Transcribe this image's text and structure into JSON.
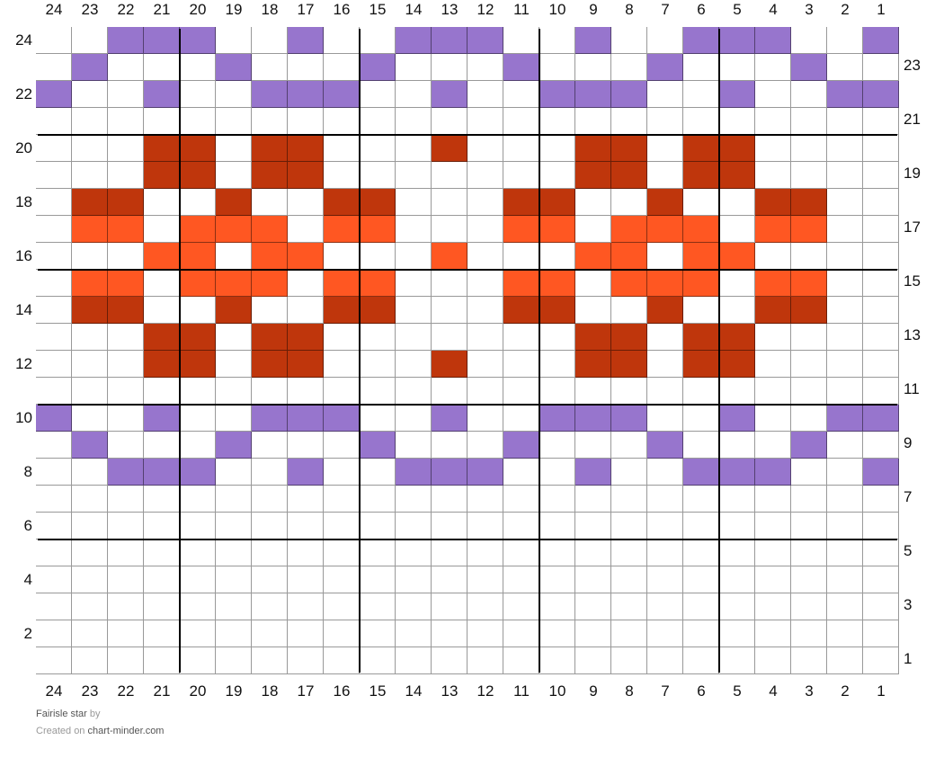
{
  "chart": {
    "title": "Fairisle star",
    "by": "by",
    "created_on": "Created on",
    "site": "chart-minder.com",
    "columns": 24,
    "rows": 24,
    "column_labels": [
      "24",
      "23",
      "22",
      "21",
      "20",
      "19",
      "18",
      "17",
      "16",
      "15",
      "14",
      "13",
      "12",
      "11",
      "10",
      "9",
      "8",
      "7",
      "6",
      "5",
      "4",
      "3",
      "2",
      "1"
    ],
    "row_labels_left": [
      "24",
      "22",
      "20",
      "18",
      "16",
      "14",
      "12",
      "10",
      "8",
      "6",
      "4",
      "2"
    ],
    "row_labels_right": [
      "23",
      "21",
      "19",
      "17",
      "15",
      "13",
      "11",
      "9",
      "7",
      "5",
      "3",
      "1"
    ],
    "palette": {
      ".": "#ffffff",
      "p": "#9775cd",
      "d": "#bf360c",
      "o": "#ff5722"
    },
    "color_names": {
      ".": "white",
      "p": "purple",
      "d": "dark-red",
      "o": "orange"
    },
    "pattern_rows_top_to_bottom": [
      "..ppp..p..ppp..p..ppp..p",
      ".p...p...p...p...p...p..",
      "p..p..ppp..p..ppp..p..pp",
      "........................",
      "...dd.dd...d...dd.dd....",
      "...dd.dd.......dd.dd....",
      ".dd..d..dd...dd..d..dd..",
      ".oo.ooo.oo...oo.ooo.oo..",
      "...oo.oo...o...oo.oo....",
      ".oo.ooo.oo...oo.ooo.oo..",
      ".dd..d..dd...dd..d..dd..",
      "...dd.dd.......dd.dd....",
      "...dd.dd...d...dd.dd....",
      "........................",
      "p..p..ppp..p..ppp..p..pp",
      ".p...p...p...p...p...p..",
      "..ppp..p..ppp..p..ppp..p",
      "........................",
      "........................",
      "........................",
      "........................",
      "........................",
      "........................",
      "........................"
    ]
  }
}
